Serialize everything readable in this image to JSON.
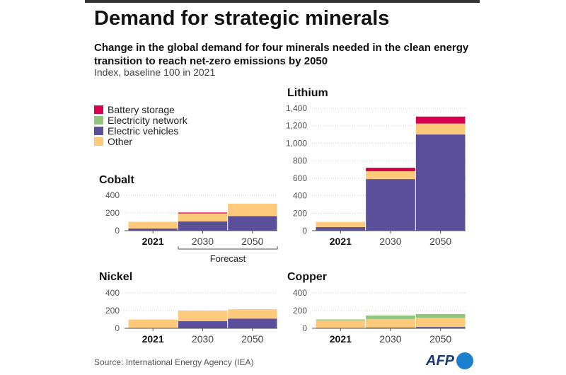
{
  "title": "Demand for strategic minerals",
  "subtitle": "Change in the global demand for four minerals needed in the clean energy transition to reach net-zero emissions by 2050",
  "index_note": "Index, baseline 100 in 2021",
  "legend": [
    {
      "label": "Battery storage",
      "color": "#d6004f"
    },
    {
      "label": "Electricity network",
      "color": "#93c47d"
    },
    {
      "label": "Electric vehicles",
      "color": "#5b4e9b"
    },
    {
      "label": "Other",
      "color": "#fec97b"
    }
  ],
  "forecast_label": "Forecast",
  "source": "Source: International Energy Agency (IEA)",
  "logo": "AFP",
  "chart_data": [
    {
      "type": "bar",
      "stacked": true,
      "title": "Cobalt",
      "categories": [
        "2021",
        "2030",
        "2050"
      ],
      "ylim": [
        0,
        400
      ],
      "yticks": [
        0,
        200,
        400
      ],
      "grid": true,
      "series": [
        {
          "name": "Electric vehicles",
          "values": [
            25,
            105,
            165
          ]
        },
        {
          "name": "Other",
          "values": [
            75,
            90,
            140
          ]
        },
        {
          "name": "Electricity network",
          "values": [
            0,
            0,
            0
          ]
        },
        {
          "name": "Battery storage",
          "values": [
            0,
            10,
            0
          ]
        }
      ]
    },
    {
      "type": "bar",
      "stacked": true,
      "title": "Lithium",
      "categories": [
        "2021",
        "2030",
        "2050"
      ],
      "ylim": [
        0,
        1400
      ],
      "yticks": [
        0,
        200,
        400,
        600,
        800,
        1000,
        1200,
        1400
      ],
      "ytick_labels": [
        "0",
        "200",
        "400",
        "600",
        "800",
        "1,000",
        "1,200",
        "1,400"
      ],
      "grid": true,
      "series": [
        {
          "name": "Electric vehicles",
          "values": [
            40,
            590,
            1100
          ]
        },
        {
          "name": "Other",
          "values": [
            60,
            90,
            125
          ]
        },
        {
          "name": "Electricity network",
          "values": [
            0,
            0,
            0
          ]
        },
        {
          "name": "Battery storage",
          "values": [
            0,
            40,
            80
          ]
        }
      ]
    },
    {
      "type": "bar",
      "stacked": true,
      "title": "Nickel",
      "categories": [
        "2021",
        "2030",
        "2050"
      ],
      "ylim": [
        0,
        400
      ],
      "yticks": [
        0,
        200,
        400
      ],
      "grid": true,
      "series": [
        {
          "name": "Electric vehicles",
          "values": [
            5,
            80,
            110
          ]
        },
        {
          "name": "Other",
          "values": [
            95,
            120,
            105
          ]
        },
        {
          "name": "Electricity network",
          "values": [
            0,
            0,
            0
          ]
        },
        {
          "name": "Battery storage",
          "values": [
            0,
            0,
            0
          ]
        }
      ]
    },
    {
      "type": "bar",
      "stacked": true,
      "title": "Copper",
      "categories": [
        "2021",
        "2030",
        "2050"
      ],
      "ylim": [
        0,
        400
      ],
      "yticks": [
        0,
        200,
        400
      ],
      "grid": true,
      "series": [
        {
          "name": "Electric vehicles",
          "values": [
            2,
            8,
            15
          ]
        },
        {
          "name": "Other",
          "values": [
            88,
            97,
            105
          ]
        },
        {
          "name": "Electricity network",
          "values": [
            10,
            40,
            40
          ]
        },
        {
          "name": "Battery storage",
          "values": [
            0,
            0,
            0
          ]
        }
      ]
    }
  ]
}
